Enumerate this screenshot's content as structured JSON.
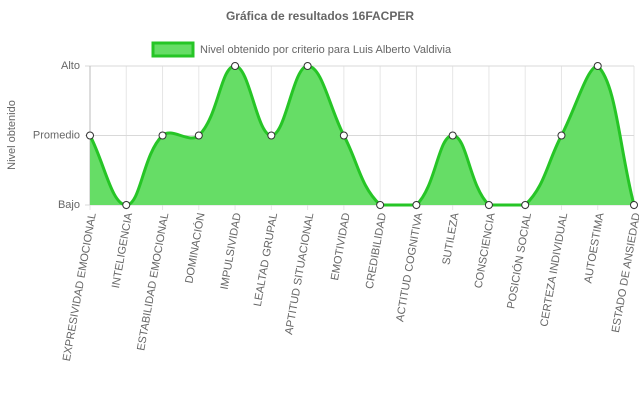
{
  "chart_data": {
    "type": "area",
    "title": "Gráfica de resultados 16FACPER",
    "y_label": "Nivel obtenido",
    "categories": [
      "EXPRESIVIDAD EMOCIONAL",
      "INTELIGENCIA",
      "ESTABILIDAD EMOCIONAL",
      "DOMINACIÓN",
      "IMPULSIVIDAD",
      "LEALTAD GRUPAL",
      "APTITUD SITUACIONAL",
      "EMOTIVIDAD",
      "CREDIBILIDAD",
      "ACTITUD COGNITIVA",
      "SUTILEZA",
      "CONSCIENCIA",
      "POSICIÓN SOCIAL",
      "CERTEZA INDIVIDUAL",
      "AUTOESTIMA",
      "ESTADO DE ANSIEDAD"
    ],
    "series": [
      {
        "name": "Nivel obtenido por criterio para Luis Alberto Valdivia",
        "color": "#26c526",
        "fill": "#66dd66",
        "values": [
          2,
          1,
          2,
          2,
          3,
          2,
          3,
          2,
          1,
          1,
          2,
          1,
          1,
          2,
          3,
          1
        ]
      }
    ],
    "ylim": [
      1,
      3
    ],
    "yticks": [
      {
        "value": 1,
        "label": "Bajo"
      },
      {
        "value": 2,
        "label": "Promedio"
      },
      {
        "value": 3,
        "label": "Alto"
      }
    ],
    "grid": true,
    "legend": "top"
  }
}
